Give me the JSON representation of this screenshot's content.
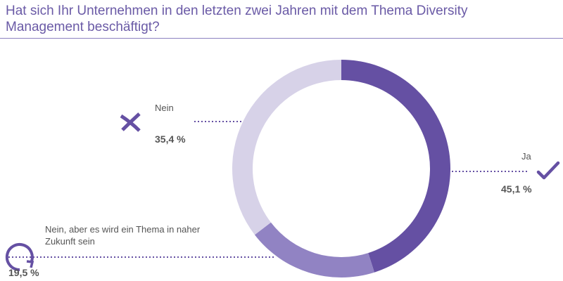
{
  "title": "Hat sich Ihr Unternehmen in den letzten zwei Jahren mit dem Thema Diversity Management beschäftigt?",
  "colors": {
    "title": "#6a5aa6",
    "ja": "#6550a3",
    "zukunft": "#9183c3",
    "nein": "#d7d2e8",
    "dots": "#6550a3",
    "text": "#555555"
  },
  "chart_data": {
    "type": "pie",
    "donut": true,
    "title": "Hat sich Ihr Unternehmen in den letzten zwei Jahren mit dem Thema Diversity Management beschäftigt?",
    "slices": [
      {
        "label": "Ja",
        "value": 45.1,
        "value_label": "45,1 %",
        "color": "#6550a3",
        "icon": "checkmark-icon"
      },
      {
        "label": "Nein, aber es wird ein Thema in naher Zukunft sein",
        "value": 19.5,
        "value_label": "19,5 %",
        "color": "#9183c3",
        "icon": "circular-arrow-icon"
      },
      {
        "label": "Nein",
        "value": 35.4,
        "value_label": "35,4 %",
        "color": "#d7d2e8",
        "icon": "cross-icon"
      }
    ]
  }
}
